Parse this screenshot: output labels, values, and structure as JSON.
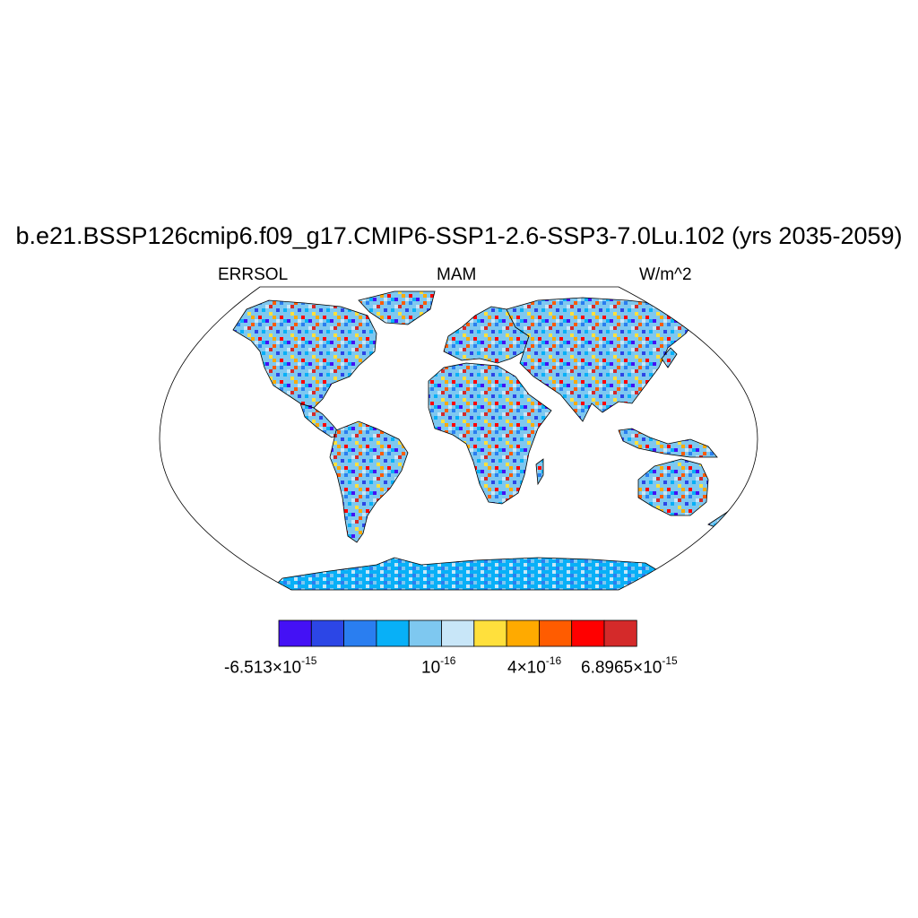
{
  "title": "b.e21.BSSP126cmip6.f09_g17.CMIP6-SSP1-2.6-SSP3-7.0Lu.102 (yrs 2035-2059)",
  "left_label": "ERRSOL",
  "center_label": "MAM",
  "right_label": "W/m^2",
  "colorbar": {
    "colors": [
      "#4411f5",
      "#2c46e6",
      "#2a7ef0",
      "#08b0f7",
      "#7ec8f0",
      "#c8e6f8",
      "#ffe03c",
      "#ffaa00",
      "#ff5c00",
      "#ff0000",
      "#d42a2a"
    ],
    "labels": [
      {
        "base": "-6.513×10",
        "exp": "-15"
      },
      {
        "base": "10",
        "exp": "-16"
      },
      {
        "base": "4×10",
        "exp": "-16"
      },
      {
        "base": "6.8965×10",
        "exp": "-15"
      }
    ]
  }
}
